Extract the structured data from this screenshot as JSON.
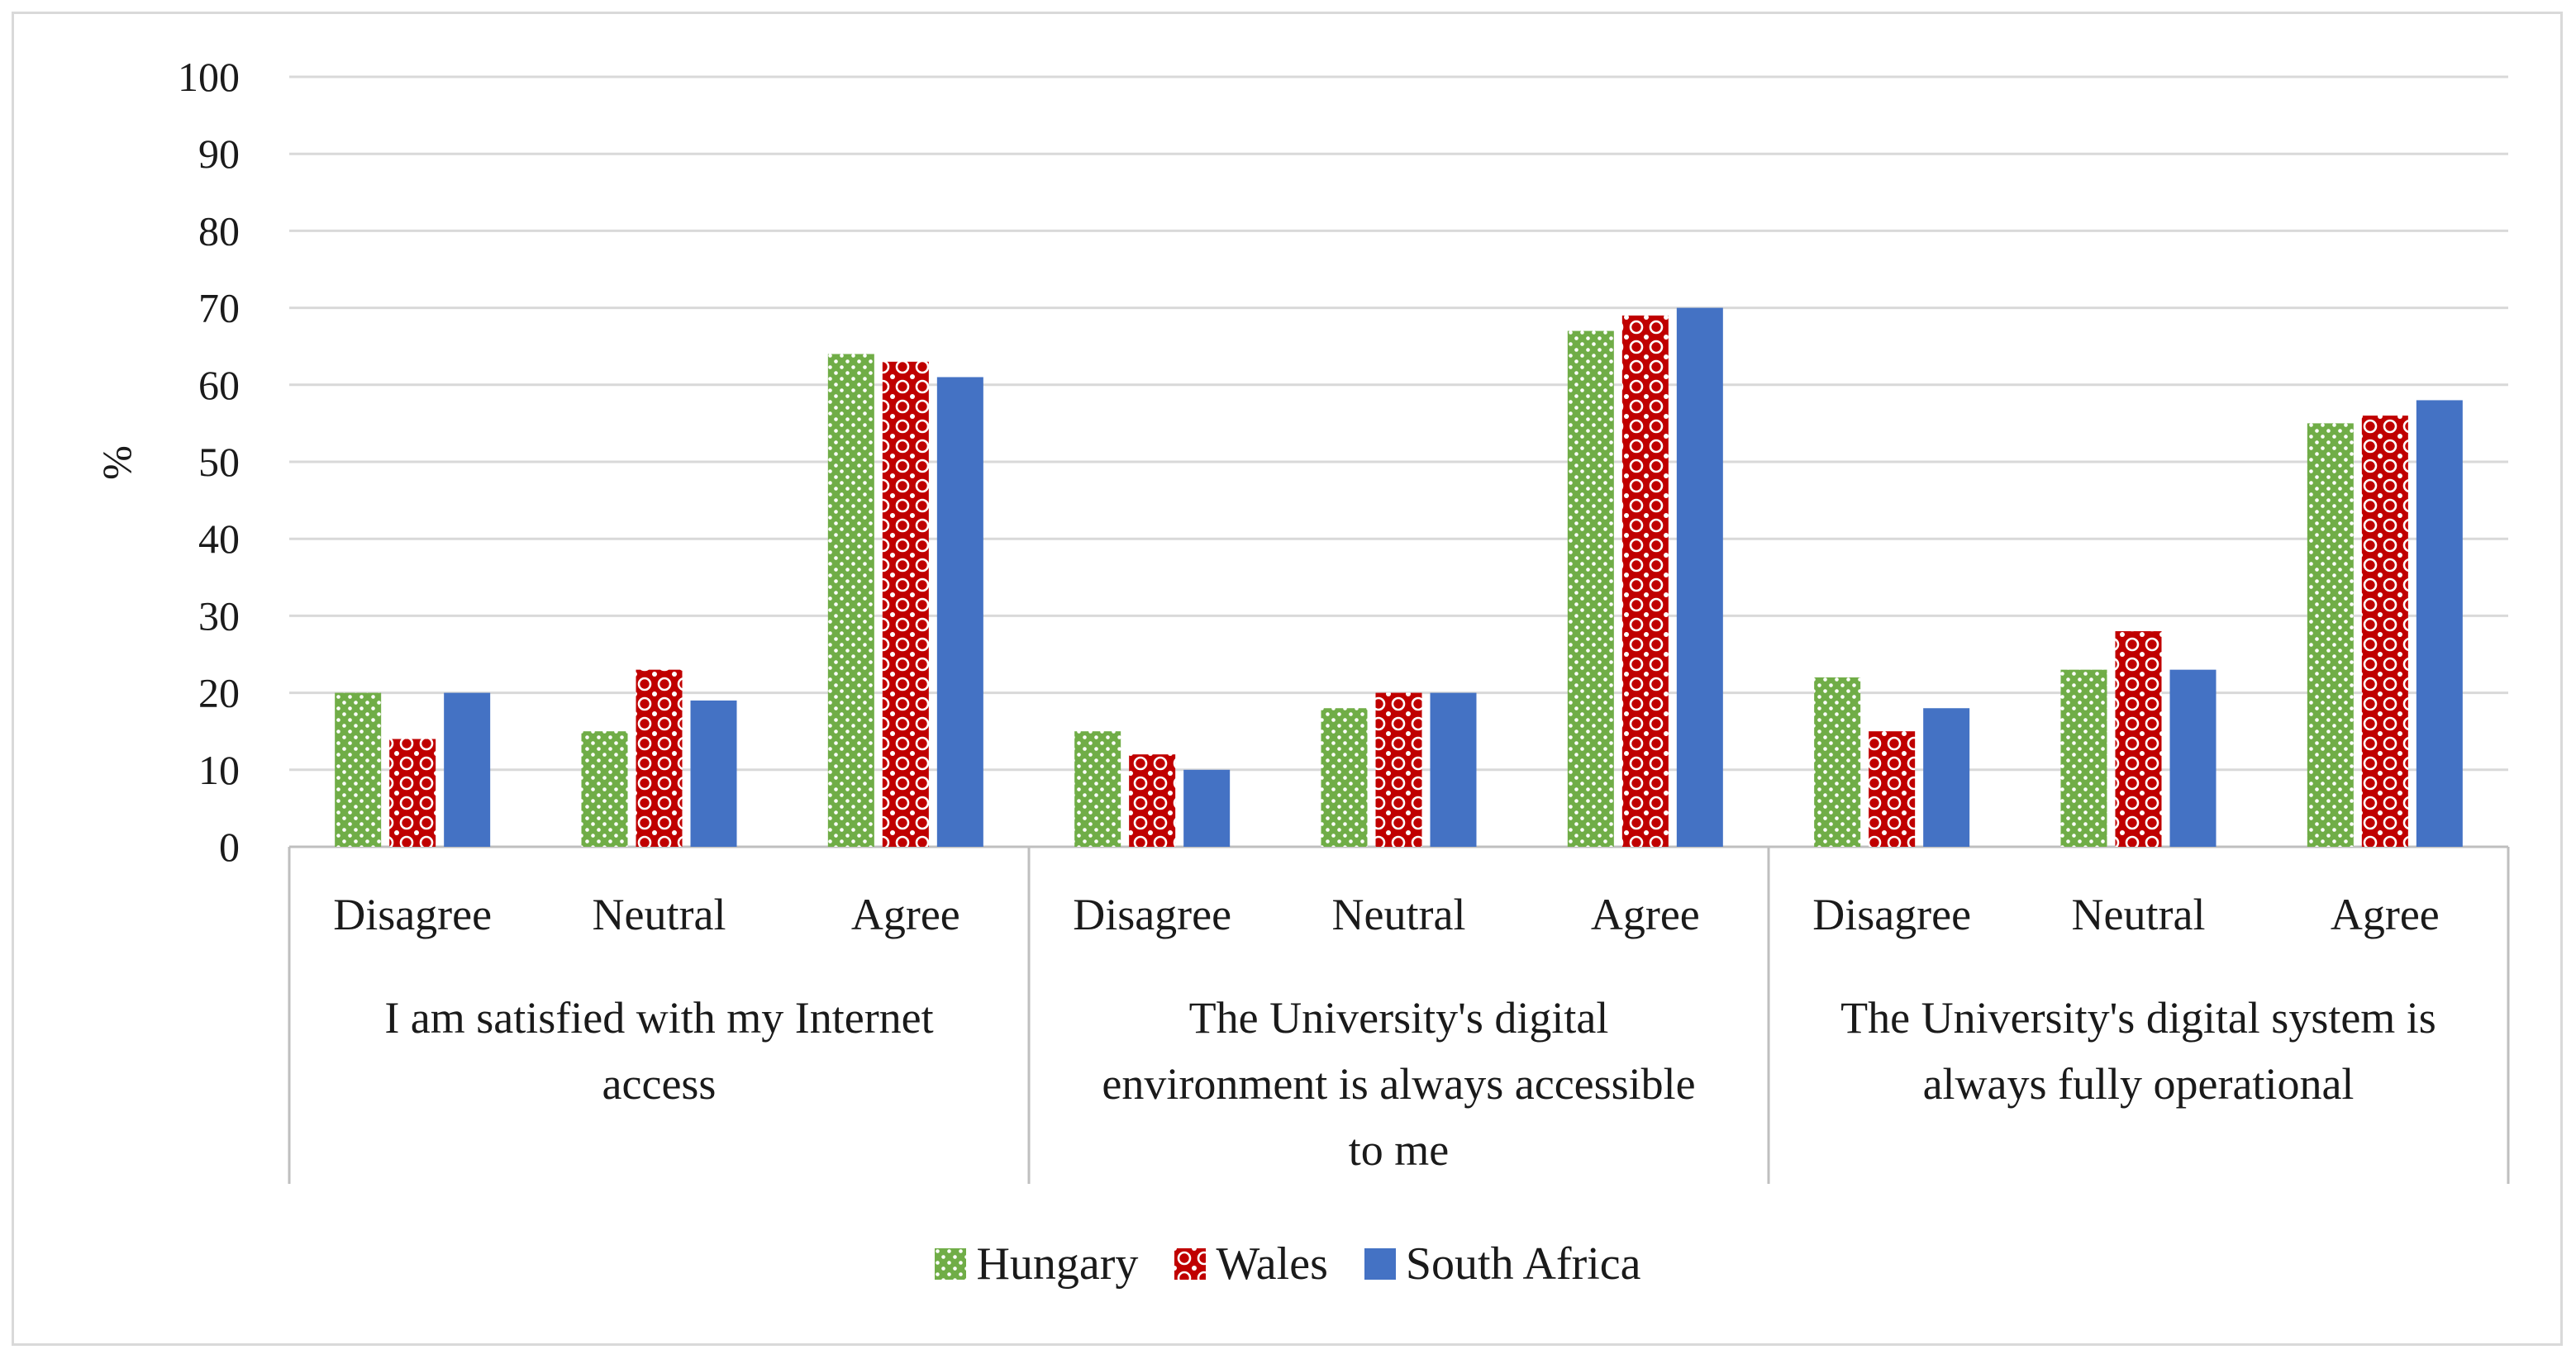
{
  "chart_data": {
    "type": "bar",
    "ylabel": "%",
    "ylim": [
      0,
      100
    ],
    "yticks": [
      0,
      10,
      20,
      30,
      40,
      50,
      60,
      70,
      80,
      90,
      100
    ],
    "grid": true,
    "legend_position": "bottom",
    "groups": [
      {
        "label": "I am satisfied with my Internet access",
        "label_lines": [
          "I am satisfied with my Internet",
          "access"
        ],
        "categories": [
          "Disagree",
          "Neutral",
          "Agree"
        ]
      },
      {
        "label": "The University's digital environment is always accessible to me",
        "label_lines": [
          "The University's digital",
          "environment is always accessible",
          "to me"
        ],
        "categories": [
          "Disagree",
          "Neutral",
          "Agree"
        ]
      },
      {
        "label": "The University's digital system is always fully operational",
        "label_lines": [
          "The University's digital system is",
          "always fully operational"
        ],
        "categories": [
          "Disagree",
          "Neutral",
          "Agree"
        ]
      }
    ],
    "series": [
      {
        "name": "Hungary",
        "color": "#70ad47",
        "pattern": "dots",
        "values": [
          20,
          15,
          64,
          15,
          18,
          67,
          22,
          23,
          55
        ]
      },
      {
        "name": "Wales",
        "color": "#c00000",
        "pattern": "circles",
        "values": [
          14,
          23,
          63,
          12,
          20,
          69,
          15,
          28,
          56
        ]
      },
      {
        "name": "South Africa",
        "color": "#4472c4",
        "pattern": "solid",
        "values": [
          20,
          19,
          61,
          10,
          20,
          70,
          18,
          23,
          58
        ]
      }
    ]
  }
}
